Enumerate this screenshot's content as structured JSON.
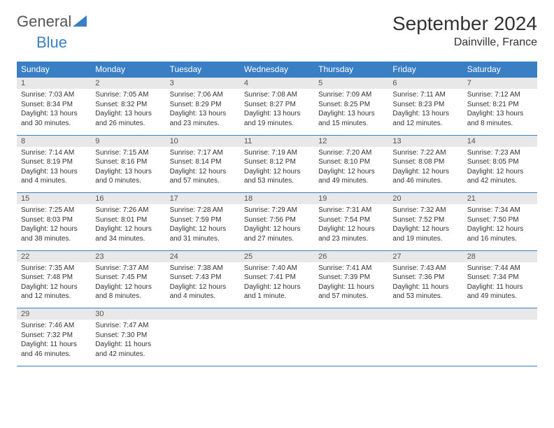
{
  "logo": {
    "text1": "General",
    "text2": "Blue"
  },
  "title": "September 2024",
  "location": "Dainville, France",
  "colors": {
    "header_bg": "#3a7fc4",
    "header_fg": "#ffffff",
    "daynum_bg": "#e8e8e8",
    "border": "#3a7fc4",
    "text": "#333333"
  },
  "weekdays": [
    "Sunday",
    "Monday",
    "Tuesday",
    "Wednesday",
    "Thursday",
    "Friday",
    "Saturday"
  ],
  "weeks": [
    [
      {
        "n": "1",
        "sr": "Sunrise: 7:03 AM",
        "ss": "Sunset: 8:34 PM",
        "dl": "Daylight: 13 hours and 30 minutes."
      },
      {
        "n": "2",
        "sr": "Sunrise: 7:05 AM",
        "ss": "Sunset: 8:32 PM",
        "dl": "Daylight: 13 hours and 26 minutes."
      },
      {
        "n": "3",
        "sr": "Sunrise: 7:06 AM",
        "ss": "Sunset: 8:29 PM",
        "dl": "Daylight: 13 hours and 23 minutes."
      },
      {
        "n": "4",
        "sr": "Sunrise: 7:08 AM",
        "ss": "Sunset: 8:27 PM",
        "dl": "Daylight: 13 hours and 19 minutes."
      },
      {
        "n": "5",
        "sr": "Sunrise: 7:09 AM",
        "ss": "Sunset: 8:25 PM",
        "dl": "Daylight: 13 hours and 15 minutes."
      },
      {
        "n": "6",
        "sr": "Sunrise: 7:11 AM",
        "ss": "Sunset: 8:23 PM",
        "dl": "Daylight: 13 hours and 12 minutes."
      },
      {
        "n": "7",
        "sr": "Sunrise: 7:12 AM",
        "ss": "Sunset: 8:21 PM",
        "dl": "Daylight: 13 hours and 8 minutes."
      }
    ],
    [
      {
        "n": "8",
        "sr": "Sunrise: 7:14 AM",
        "ss": "Sunset: 8:19 PM",
        "dl": "Daylight: 13 hours and 4 minutes."
      },
      {
        "n": "9",
        "sr": "Sunrise: 7:15 AM",
        "ss": "Sunset: 8:16 PM",
        "dl": "Daylight: 13 hours and 0 minutes."
      },
      {
        "n": "10",
        "sr": "Sunrise: 7:17 AM",
        "ss": "Sunset: 8:14 PM",
        "dl": "Daylight: 12 hours and 57 minutes."
      },
      {
        "n": "11",
        "sr": "Sunrise: 7:19 AM",
        "ss": "Sunset: 8:12 PM",
        "dl": "Daylight: 12 hours and 53 minutes."
      },
      {
        "n": "12",
        "sr": "Sunrise: 7:20 AM",
        "ss": "Sunset: 8:10 PM",
        "dl": "Daylight: 12 hours and 49 minutes."
      },
      {
        "n": "13",
        "sr": "Sunrise: 7:22 AM",
        "ss": "Sunset: 8:08 PM",
        "dl": "Daylight: 12 hours and 46 minutes."
      },
      {
        "n": "14",
        "sr": "Sunrise: 7:23 AM",
        "ss": "Sunset: 8:05 PM",
        "dl": "Daylight: 12 hours and 42 minutes."
      }
    ],
    [
      {
        "n": "15",
        "sr": "Sunrise: 7:25 AM",
        "ss": "Sunset: 8:03 PM",
        "dl": "Daylight: 12 hours and 38 minutes."
      },
      {
        "n": "16",
        "sr": "Sunrise: 7:26 AM",
        "ss": "Sunset: 8:01 PM",
        "dl": "Daylight: 12 hours and 34 minutes."
      },
      {
        "n": "17",
        "sr": "Sunrise: 7:28 AM",
        "ss": "Sunset: 7:59 PM",
        "dl": "Daylight: 12 hours and 31 minutes."
      },
      {
        "n": "18",
        "sr": "Sunrise: 7:29 AM",
        "ss": "Sunset: 7:56 PM",
        "dl": "Daylight: 12 hours and 27 minutes."
      },
      {
        "n": "19",
        "sr": "Sunrise: 7:31 AM",
        "ss": "Sunset: 7:54 PM",
        "dl": "Daylight: 12 hours and 23 minutes."
      },
      {
        "n": "20",
        "sr": "Sunrise: 7:32 AM",
        "ss": "Sunset: 7:52 PM",
        "dl": "Daylight: 12 hours and 19 minutes."
      },
      {
        "n": "21",
        "sr": "Sunrise: 7:34 AM",
        "ss": "Sunset: 7:50 PM",
        "dl": "Daylight: 12 hours and 16 minutes."
      }
    ],
    [
      {
        "n": "22",
        "sr": "Sunrise: 7:35 AM",
        "ss": "Sunset: 7:48 PM",
        "dl": "Daylight: 12 hours and 12 minutes."
      },
      {
        "n": "23",
        "sr": "Sunrise: 7:37 AM",
        "ss": "Sunset: 7:45 PM",
        "dl": "Daylight: 12 hours and 8 minutes."
      },
      {
        "n": "24",
        "sr": "Sunrise: 7:38 AM",
        "ss": "Sunset: 7:43 PM",
        "dl": "Daylight: 12 hours and 4 minutes."
      },
      {
        "n": "25",
        "sr": "Sunrise: 7:40 AM",
        "ss": "Sunset: 7:41 PM",
        "dl": "Daylight: 12 hours and 1 minute."
      },
      {
        "n": "26",
        "sr": "Sunrise: 7:41 AM",
        "ss": "Sunset: 7:39 PM",
        "dl": "Daylight: 11 hours and 57 minutes."
      },
      {
        "n": "27",
        "sr": "Sunrise: 7:43 AM",
        "ss": "Sunset: 7:36 PM",
        "dl": "Daylight: 11 hours and 53 minutes."
      },
      {
        "n": "28",
        "sr": "Sunrise: 7:44 AM",
        "ss": "Sunset: 7:34 PM",
        "dl": "Daylight: 11 hours and 49 minutes."
      }
    ],
    [
      {
        "n": "29",
        "sr": "Sunrise: 7:46 AM",
        "ss": "Sunset: 7:32 PM",
        "dl": "Daylight: 11 hours and 46 minutes."
      },
      {
        "n": "30",
        "sr": "Sunrise: 7:47 AM",
        "ss": "Sunset: 7:30 PM",
        "dl": "Daylight: 11 hours and 42 minutes."
      },
      null,
      null,
      null,
      null,
      null
    ]
  ]
}
